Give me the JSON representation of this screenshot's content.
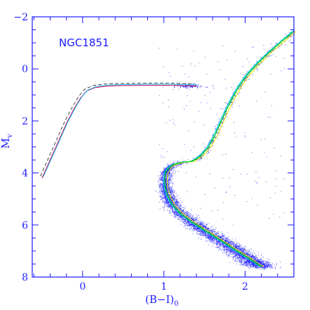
{
  "chart_data": {
    "type": "scatter",
    "title": "",
    "annotation": "NGC1851",
    "xlabel": "(B−I)",
    "xlabel_sub": "0",
    "ylabel": "M",
    "ylabel_sub": "v",
    "xlim": [
      -0.62,
      2.6
    ],
    "ylim": [
      8,
      -2
    ],
    "y_inverted": true,
    "x_ticks": [
      0,
      1,
      2
    ],
    "x_tick_labels": [
      "0",
      "1",
      "2"
    ],
    "y_ticks": [
      -2,
      0,
      2,
      4,
      6,
      8
    ],
    "y_tick_labels": [
      "−2",
      "0",
      "2",
      "4",
      "6",
      "8"
    ],
    "grid": false,
    "colors": {
      "axes": "#1a1aff",
      "points": "#1414ff",
      "isochrone_green": "#00d200",
      "isochrone_yellow": "#e6e600",
      "isochrone_cyan": "#00c8ff",
      "hb_red": "#d01060",
      "hb_dashed": "#333333"
    },
    "sequences": {
      "main_sequence_ridge": {
        "x": [
          1.35,
          1.2,
          1.1,
          1.05,
          1.02,
          1.01,
          1.02,
          1.05,
          1.1,
          1.2,
          1.35,
          1.5,
          1.65,
          1.8,
          1.95,
          2.1,
          2.2
        ],
        "y": [
          3.55,
          3.6,
          3.7,
          3.85,
          4.0,
          4.3,
          4.6,
          4.9,
          5.2,
          5.55,
          5.9,
          6.2,
          6.5,
          6.8,
          7.1,
          7.4,
          7.6
        ]
      },
      "red_giant_branch": {
        "x": [
          1.35,
          1.45,
          1.55,
          1.62,
          1.68,
          1.75,
          1.83,
          1.92,
          2.02,
          2.15,
          2.3,
          2.45,
          2.6
        ],
        "y": [
          3.55,
          3.35,
          3.0,
          2.6,
          2.2,
          1.7,
          1.2,
          0.7,
          0.25,
          -0.2,
          -0.65,
          -1.05,
          -1.45
        ]
      },
      "horizontal_branch": {
        "x": [
          -0.5,
          -0.4,
          -0.3,
          -0.2,
          -0.1,
          -0.02,
          0.05,
          0.15,
          0.3,
          0.5,
          0.8,
          1.1,
          1.4
        ],
        "y": [
          4.2,
          3.5,
          2.8,
          2.1,
          1.5,
          1.1,
          0.85,
          0.72,
          0.66,
          0.64,
          0.63,
          0.63,
          0.66
        ]
      }
    }
  }
}
